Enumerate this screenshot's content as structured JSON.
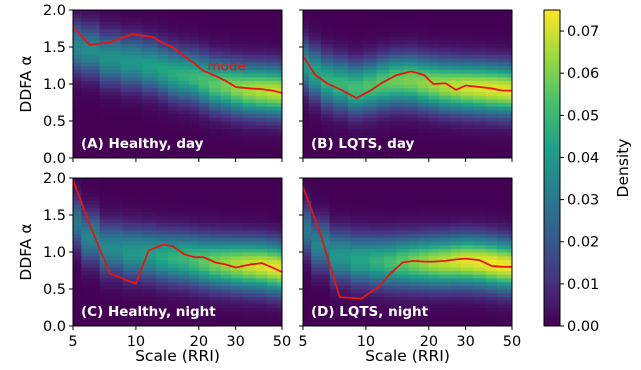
{
  "colors": {
    "mode_line": "#e8150f",
    "panel_label_text": "#ffffff",
    "colormap": [
      "#440154",
      "#46327e",
      "#365c8d",
      "#277f8e",
      "#1fa187",
      "#4ac16d",
      "#9fda3a",
      "#fde725"
    ]
  },
  "chart_data": [
    {
      "type": "heatmap",
      "panel_label": "(A) Healthy, day",
      "annotation": "mode",
      "xlabel": "",
      "ylabel": "DDFA α",
      "x_scale": "log",
      "xlim": [
        5,
        50
      ],
      "ylim": [
        0,
        2
      ],
      "mode_x": [
        5,
        6,
        7.5,
        9.5,
        12,
        13.5,
        15,
        17,
        19,
        21,
        24,
        27,
        30,
        35,
        40,
        45,
        50
      ],
      "mode_y": [
        1.77,
        1.53,
        1.56,
        1.67,
        1.64,
        1.55,
        1.5,
        1.38,
        1.28,
        1.18,
        1.11,
        1.04,
        0.96,
        0.94,
        0.93,
        0.91,
        0.88
      ],
      "density_peak_y": [
        1.5,
        1.45,
        1.35,
        1.3,
        1.25,
        1.2,
        1.15,
        1.12,
        1.1,
        1.05,
        1.0,
        0.98,
        0.95,
        0.93,
        0.92,
        0.91,
        0.9
      ],
      "density_peak_value": [
        0.035,
        0.036,
        0.038,
        0.04,
        0.042,
        0.044,
        0.046,
        0.048,
        0.05,
        0.053,
        0.056,
        0.059,
        0.062,
        0.065,
        0.067,
        0.068,
        0.068
      ]
    },
    {
      "type": "heatmap",
      "panel_label": "(B) LQTS, day",
      "xlabel": "",
      "ylabel": "",
      "x_scale": "log",
      "xlim": [
        5,
        50
      ],
      "ylim": [
        0,
        2
      ],
      "mode_x": [
        5,
        5.7,
        6.5,
        7.5,
        9,
        10.5,
        12,
        14,
        16.5,
        19,
        21,
        24,
        27,
        30,
        35,
        40,
        45,
        50
      ],
      "mode_y": [
        1.38,
        1.13,
        1.01,
        0.93,
        0.81,
        0.91,
        1.02,
        1.12,
        1.17,
        1.12,
        1.0,
        1.01,
        0.92,
        0.98,
        0.96,
        0.94,
        0.91,
        0.91
      ],
      "density_peak_y": [
        1.25,
        1.15,
        1.05,
        1.0,
        0.95,
        0.98,
        1.02,
        1.05,
        1.05,
        1.02,
        1.0,
        0.98,
        0.97,
        0.96,
        0.95,
        0.94,
        0.93,
        0.92
      ],
      "density_peak_value": [
        0.04,
        0.044,
        0.048,
        0.05,
        0.052,
        0.054,
        0.056,
        0.058,
        0.06,
        0.062,
        0.064,
        0.066,
        0.068,
        0.07,
        0.071,
        0.072,
        0.072,
        0.072
      ]
    },
    {
      "type": "heatmap",
      "panel_label": "(C) Healthy, night",
      "xlabel": "Scale (RRI)",
      "ylabel": "DDFA α",
      "x_scale": "log",
      "xlim": [
        5,
        50
      ],
      "ylim": [
        0,
        2
      ],
      "mode_x": [
        5,
        6,
        7.5,
        10,
        11.5,
        13.5,
        15,
        17,
        19,
        21,
        24,
        27,
        30,
        35,
        40,
        45,
        50
      ],
      "mode_y": [
        1.97,
        1.38,
        0.71,
        0.57,
        1.02,
        1.1,
        1.08,
        0.97,
        0.93,
        0.93,
        0.86,
        0.83,
        0.79,
        0.83,
        0.85,
        0.79,
        0.73
      ],
      "density_peak_y": [
        1.4,
        1.2,
        1.05,
        1.0,
        0.98,
        0.95,
        0.93,
        0.92,
        0.9,
        0.88,
        0.86,
        0.85,
        0.84,
        0.83,
        0.82,
        0.8,
        0.78
      ],
      "density_peak_value": [
        0.03,
        0.034,
        0.036,
        0.04,
        0.042,
        0.045,
        0.048,
        0.05,
        0.053,
        0.056,
        0.06,
        0.063,
        0.066,
        0.069,
        0.071,
        0.072,
        0.072
      ]
    },
    {
      "type": "heatmap",
      "panel_label": "(D) LQTS, night",
      "xlabel": "Scale (RRI)",
      "ylabel": "",
      "x_scale": "log",
      "xlim": [
        5,
        50
      ],
      "ylim": [
        0,
        2
      ],
      "mode_x": [
        5,
        6,
        7.5,
        9.5,
        11.5,
        13,
        15,
        17,
        19,
        21,
        24,
        27,
        30,
        35,
        40,
        45,
        50
      ],
      "mode_y": [
        1.88,
        1.28,
        0.39,
        0.37,
        0.53,
        0.7,
        0.86,
        0.88,
        0.87,
        0.87,
        0.88,
        0.9,
        0.91,
        0.89,
        0.81,
        0.8,
        0.8
      ],
      "density_peak_y": [
        1.3,
        1.1,
        0.95,
        0.9,
        0.88,
        0.87,
        0.87,
        0.87,
        0.87,
        0.87,
        0.87,
        0.88,
        0.88,
        0.87,
        0.85,
        0.83,
        0.82
      ],
      "density_peak_value": [
        0.03,
        0.034,
        0.04,
        0.044,
        0.048,
        0.052,
        0.056,
        0.06,
        0.063,
        0.066,
        0.068,
        0.07,
        0.072,
        0.073,
        0.074,
        0.074,
        0.074
      ]
    }
  ],
  "axes": {
    "x_ticks": [
      "5",
      "10",
      "20",
      "30",
      "50"
    ],
    "x_tick_values": [
      5,
      10,
      20,
      30,
      50
    ],
    "y_ticks": [
      "0.0",
      "0.5",
      "1.0",
      "1.5",
      "2.0"
    ],
    "y_tick_values": [
      0,
      0.5,
      1.0,
      1.5,
      2.0
    ]
  },
  "colorbar": {
    "label": "Density",
    "range": [
      0,
      0.075
    ],
    "ticks": [
      "0.00",
      "0.01",
      "0.02",
      "0.03",
      "0.04",
      "0.05",
      "0.06",
      "0.07"
    ],
    "tick_values": [
      0,
      0.01,
      0.02,
      0.03,
      0.04,
      0.05,
      0.06,
      0.07
    ]
  }
}
